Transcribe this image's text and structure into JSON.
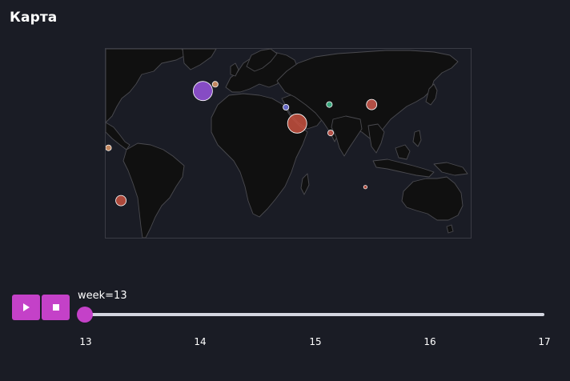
{
  "page": {
    "title": "Карта"
  },
  "map": {
    "land_fill": "#101010",
    "border_color": "#4a4a4f",
    "background": "#1a1c25",
    "markers": [
      {
        "lon": 2,
        "lat": 46,
        "color": "#9a55e0",
        "size": "large"
      },
      {
        "lon": 12,
        "lat": 51,
        "color": "#e29a6a",
        "size": "small"
      },
      {
        "lon": 78,
        "lat": 22,
        "color": "#c85140",
        "size": "large"
      },
      {
        "lon": 69,
        "lat": 34,
        "color": "#6f72dc",
        "size": "small"
      },
      {
        "lon": 104,
        "lat": 36,
        "color": "#41c08f",
        "size": "small"
      },
      {
        "lon": 105,
        "lat": 15,
        "color": "#d05a4f",
        "size": "small"
      },
      {
        "lon": 138,
        "lat": 36,
        "color": "#d05a4f",
        "size": "medium"
      },
      {
        "lon": -74,
        "lat": 4,
        "color": "#e29a6a",
        "size": "small"
      },
      {
        "lon": -64,
        "lat": -35,
        "color": "#c85140",
        "size": "medium"
      },
      {
        "lon": 133,
        "lat": -25,
        "color": "#c85140",
        "size": "tiny"
      }
    ]
  },
  "controls": {
    "play": {
      "icon": "play-icon"
    },
    "stop": {
      "icon": "stop-icon"
    },
    "accent_color": "#c441c8"
  },
  "slider": {
    "current_label": "week=13",
    "current_value": 13,
    "min": 13,
    "max": 17,
    "ticks": [
      "13",
      "14",
      "15",
      "16",
      "17"
    ]
  }
}
